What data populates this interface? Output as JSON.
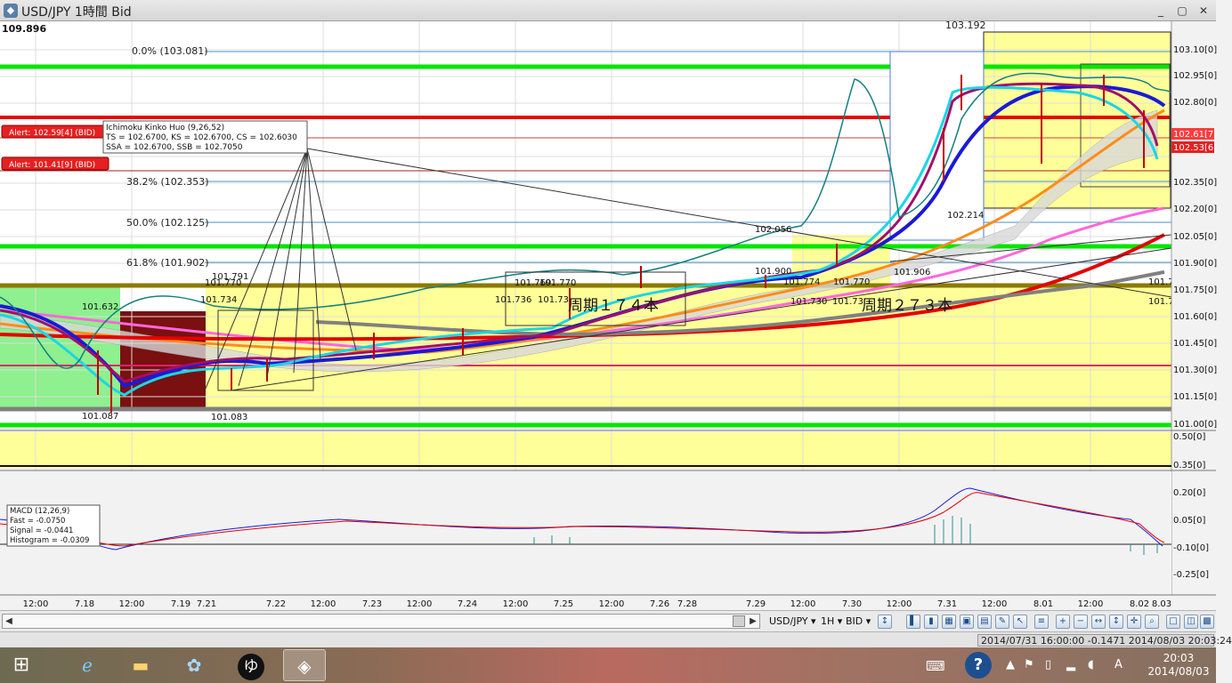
{
  "window": {
    "title": "USD/JPY 1時間 Bid",
    "minimize": "_",
    "restore": "▢",
    "close": "✕"
  },
  "chart": {
    "top_left_value": "109.896",
    "high_label": "103.192",
    "price_axis": [
      "103.10[0]",
      "102.95[0]",
      "102.80[0]",
      "102.35[0]",
      "102.20[0]",
      "102.05[0]",
      "101.90[0]",
      "101.75[0]",
      "101.60[0]",
      "101.45[0]",
      "101.30[0]",
      "101.15[0]",
      "101.00[0]"
    ],
    "current_price_tags": [
      "102.61[7]",
      "102.53[6]"
    ],
    "fib_levels": [
      "0.0% (103.081)",
      "38.2% (102.353)",
      "50.0% (102.125)",
      "61.8% (101.902)"
    ],
    "alerts": [
      "Alert: 102.59[4] (BID)",
      "Alert: 101.41[9] (BID)"
    ],
    "ichimoku_box": {
      "title": "Ichimoku Kinko Huo (9,26,52)",
      "line1": "TS = 102.6700, KS = 102.6700, CS = 102.6030",
      "line2": "SSA = 102.6700, SSB = 102.7050"
    },
    "price_labels": [
      "101.632",
      "101.791",
      "101.770",
      "101.734",
      "101.087",
      "101.083",
      "101.769",
      "101.770",
      "101.736",
      "101.73",
      "102.056",
      "101.900",
      "101.774",
      "101.770",
      "101.730",
      "101.73",
      "101.906",
      "102.214",
      "101.7",
      "101.7"
    ],
    "cycle_labels": [
      "周期１７４本",
      "周期２７３本"
    ],
    "osc_axis": [
      "0.50[0]",
      "0.35[0]"
    ],
    "macd_axis": [
      "0.20[0]",
      "0.05[0]",
      "-0.10[0]",
      "-0.25[0]"
    ],
    "macd_box": {
      "title": "MACD (12,26,9)",
      "fast": "Fast = -0.0750",
      "signal": "Signal = -0.0441",
      "histogram": "Histogram = -0.0309"
    },
    "time_axis": [
      "12:00",
      "7.18",
      "12:00",
      "7.19",
      "7.21",
      "7.22",
      "12:00",
      "7.23",
      "12:00",
      "7.24",
      "12:00",
      "7.25",
      "12:00",
      "7.26",
      "7.28",
      "7.29",
      "12:00",
      "7.30",
      "12:00",
      "7.31",
      "12:00",
      "8.01",
      "12:00",
      "8.02",
      "8.03"
    ],
    "colors": {
      "bg": "#ffffff",
      "yellow_zone": "#ffff99",
      "green_zone": "#8ef08e",
      "maroon_zone": "#7a1010",
      "green_line": "#00e600",
      "red_line": "#e60000"
    }
  },
  "toolbar": {
    "symbol": "USD/JPY ▾",
    "timeframe": "1H ▾",
    "side": "BID ▾"
  },
  "status": {
    "info": "2014/07/31 16:00:00  -0.1471  2014/08/03 20:03:24"
  },
  "taskbar": {
    "ime_char": "A",
    "time": "20:03",
    "date": "2014/08/03",
    "app_glyph": "ゆ"
  }
}
